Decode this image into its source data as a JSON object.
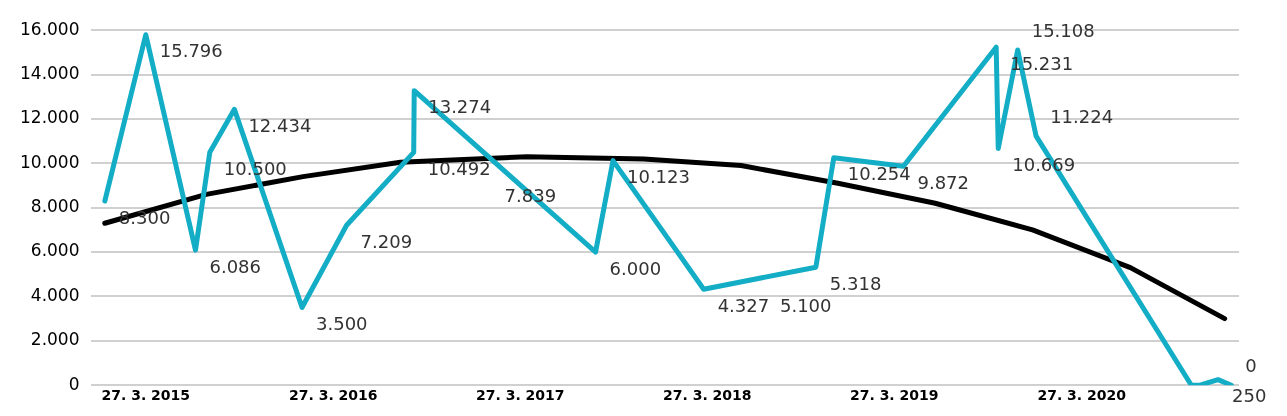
{
  "chart_data": {
    "type": "line",
    "xlim": [
      "2014-12-11",
      "2021-01-28"
    ],
    "xticks": [
      {
        "value": "2015-03-27",
        "label": "27. 3. 2015"
      },
      {
        "value": "2016-03-27",
        "label": "27. 3. 2016"
      },
      {
        "value": "2017-03-27",
        "label": "27. 3. 2017"
      },
      {
        "value": "2018-03-27",
        "label": "27. 3. 2018"
      },
      {
        "value": "2019-03-27",
        "label": "27. 3. 2019"
      },
      {
        "value": "2020-03-27",
        "label": "27. 3. 2020"
      }
    ],
    "ylim": [
      0,
      16000
    ],
    "yticks": [
      {
        "value": 0,
        "label": "0"
      },
      {
        "value": 2000,
        "label": "2.000"
      },
      {
        "value": 4000,
        "label": "4.000"
      },
      {
        "value": 6000,
        "label": "6.000"
      },
      {
        "value": 8000,
        "label": "8.000"
      },
      {
        "value": 10000,
        "label": "10.000"
      },
      {
        "value": 12000,
        "label": "12.000"
      },
      {
        "value": 14000,
        "label": "14.000"
      },
      {
        "value": 16000,
        "label": "16.000"
      }
    ],
    "grid": "y",
    "legend": false,
    "marker": "none",
    "series": [
      {
        "color": "#13adc6",
        "x": [
          "2015-01-06",
          "2015-03-27",
          "2015-07-02",
          "2015-07-30",
          "2015-09-16",
          "2016-01-26",
          "2016-04-22",
          "2016-08-31",
          "2016-09-01",
          "2017-08-21",
          "2017-09-24",
          "2018-03-20",
          "2018-10-25",
          "2018-11-29",
          "2019-04-14",
          "2019-10-12",
          "2019-10-16",
          "2019-11-23",
          "2019-12-29",
          "2020-10-27",
          "2020-11-13",
          "2020-12-18",
          "2021-01-13"
        ],
        "values": [
          8300,
          15796,
          6086,
          10500,
          12434,
          3500,
          7209,
          10492,
          13274,
          6000,
          10123,
          4327,
          5318,
          10254,
          9872,
          15231,
          10669,
          15108,
          11224,
          0,
          0,
          250,
          0
        ],
        "value_labels": [
          "8.300",
          "15.796",
          "6.086",
          "10.500",
          "12.434",
          "3.500",
          "7.209",
          "10.492",
          "13.274",
          "6.000",
          "10.123",
          "4.327",
          "5.318",
          "10.254",
          "9.872",
          "15.231",
          "10.669",
          "15.108",
          "11.224",
          null,
          null,
          "250",
          "0"
        ]
      },
      {
        "color": "#000000",
        "x": [
          "2015-01-06",
          "2015-07-23",
          "2016-01-28",
          "2016-08-05",
          "2017-04-09",
          "2017-11-23",
          "2018-06-01",
          "2018-12-07",
          "2019-06-15",
          "2019-12-22",
          "2020-06-30",
          "2020-12-31"
        ],
        "values": [
          7300,
          8600,
          9400,
          10050,
          10300,
          10200,
          9900,
          9100,
          8200,
          7000,
          5300,
          3000
        ]
      }
    ],
    "annotations": [
      "7.839",
      "5.100"
    ]
  }
}
